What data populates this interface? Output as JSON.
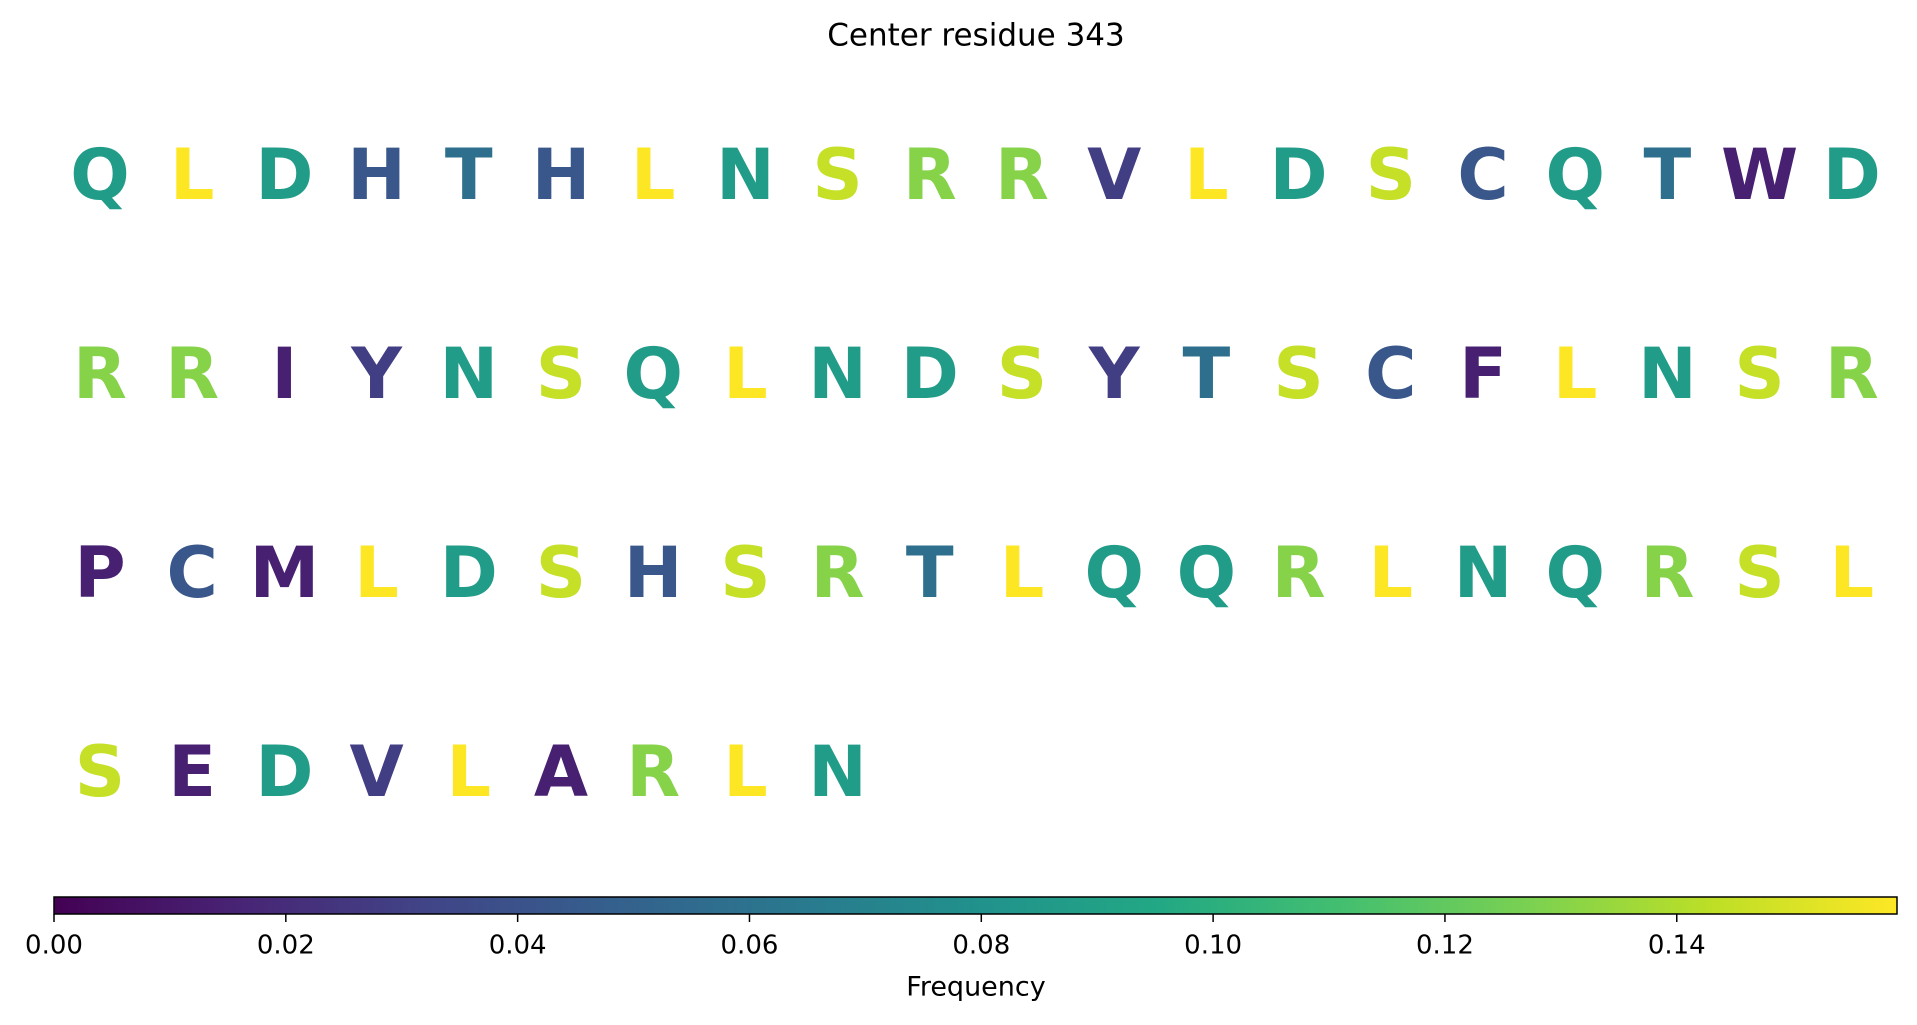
{
  "chart_data": {
    "type": "sequence",
    "title": "Center residue 343",
    "letters": [
      "Q",
      "L",
      "D",
      "H",
      "T",
      "H",
      "L",
      "N",
      "S",
      "R",
      "R",
      "V",
      "L",
      "D",
      "S",
      "C",
      "Q",
      "T",
      "W",
      "D",
      "R",
      "R",
      "I",
      "Y",
      "N",
      "S",
      "Q",
      "L",
      "N",
      "D",
      "S",
      "Y",
      "T",
      "S",
      "C",
      "F",
      "L",
      "N",
      "S",
      "R",
      "P",
      "C",
      "M",
      "L",
      "D",
      "S",
      "H",
      "S",
      "R",
      "T",
      "L",
      "Q",
      "Q",
      "R",
      "L",
      "N",
      "Q",
      "R",
      "S",
      "L",
      "S",
      "E",
      "D",
      "V",
      "L",
      "A",
      "R",
      "L",
      "N"
    ],
    "values": [
      0.087,
      0.159,
      0.087,
      0.043,
      0.058,
      0.043,
      0.159,
      0.087,
      0.145,
      0.13,
      0.13,
      0.029,
      0.159,
      0.087,
      0.145,
      0.043,
      0.087,
      0.058,
      0.014,
      0.087,
      0.13,
      0.13,
      0.014,
      0.029,
      0.087,
      0.145,
      0.087,
      0.159,
      0.087,
      0.087,
      0.145,
      0.029,
      0.058,
      0.145,
      0.043,
      0.014,
      0.159,
      0.087,
      0.145,
      0.13,
      0.014,
      0.043,
      0.014,
      0.159,
      0.087,
      0.145,
      0.043,
      0.145,
      0.13,
      0.058,
      0.159,
      0.087,
      0.087,
      0.13,
      0.159,
      0.087,
      0.087,
      0.13,
      0.145,
      0.159,
      0.145,
      0.014,
      0.087,
      0.029,
      0.159,
      0.014,
      0.13,
      0.159,
      0.087
    ],
    "per_row": 20,
    "colormap": "viridis",
    "xlim": [
      0,
      0.159
    ],
    "xticks": [
      {
        "value": 0,
        "label": "0.00"
      },
      {
        "value": 0.02,
        "label": "0.02"
      },
      {
        "value": 0.04,
        "label": "0.04"
      },
      {
        "value": 0.06,
        "label": "0.06"
      },
      {
        "value": 0.08,
        "label": "0.08"
      },
      {
        "value": 0.1,
        "label": "0.10"
      },
      {
        "value": 0.12,
        "label": "0.12"
      },
      {
        "value": 0.14,
        "label": "0.14"
      }
    ],
    "xlabel": "Frequency"
  }
}
